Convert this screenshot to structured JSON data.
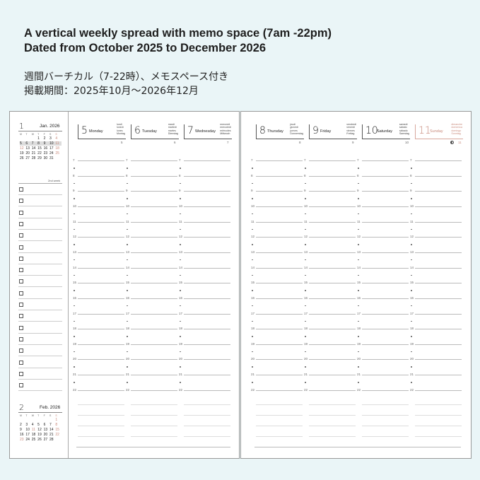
{
  "headline": [
    "A vertical weekly  spread with memo space (7am -22pm)",
    "Dated from October 2025 to December 2026"
  ],
  "japanese": [
    "週間バーチカル（7-22時）、メモスペース付き",
    "掲載期間：2025年10月～2026年12月"
  ],
  "colors": {
    "background": "#eaf5f7",
    "sunday": "#c98a7c",
    "holiday": "#c98a7c"
  },
  "sidebar": {
    "cal1": {
      "month_num": "1",
      "month_label": "Jan. 2026",
      "weekdays": [
        "M",
        "T",
        "W",
        "T",
        "F",
        "S",
        "S"
      ],
      "rows": [
        [
          "",
          "",
          "",
          "1",
          "2",
          "3",
          "4"
        ],
        [
          "5",
          "6",
          "7",
          "8",
          "9",
          "10",
          "11"
        ],
        [
          "12",
          "13",
          "14",
          "15",
          "16",
          "17",
          "18"
        ],
        [
          "19",
          "20",
          "21",
          "22",
          "23",
          "24",
          "25"
        ],
        [
          "26",
          "27",
          "28",
          "29",
          "30",
          "31",
          ""
        ]
      ],
      "highlight_row": 1
    },
    "week_label": "2nd week",
    "checkbox_count": 18,
    "cal2": {
      "month_num": "2",
      "month_label": "Feb. 2026",
      "weekdays": [
        "M",
        "T",
        "W",
        "T",
        "F",
        "S",
        "S"
      ],
      "rows": [
        [
          "",
          "",
          "",
          "",
          "",
          "",
          "1"
        ],
        [
          "2",
          "3",
          "4",
          "5",
          "6",
          "7",
          "8"
        ],
        [
          "9",
          "10",
          "11",
          "12",
          "13",
          "14",
          "15"
        ],
        [
          "16",
          "17",
          "18",
          "19",
          "20",
          "21",
          "22"
        ],
        [
          "23",
          "24",
          "25",
          "26",
          "27",
          "28",
          ""
        ]
      ]
    }
  },
  "days": [
    {
      "num": "5",
      "name": "Monday",
      "langs": [
        "lundi",
        "lunedì",
        "lunes",
        "Montag"
      ],
      "small": "5"
    },
    {
      "num": "6",
      "name": "Tuesday",
      "langs": [
        "mardi",
        "martedì",
        "martes",
        "Dienstag"
      ],
      "small": "6"
    },
    {
      "num": "7",
      "name": "Wednesday",
      "langs": [
        "mercredi",
        "mercoledì",
        "miércoles",
        "Mittwoch"
      ],
      "small": "7"
    },
    {
      "num": "8",
      "name": "Thursday",
      "langs": [
        "jeudi",
        "giovedì",
        "jueves",
        "Donnerstag"
      ],
      "small": "8"
    },
    {
      "num": "9",
      "name": "Friday",
      "langs": [
        "vendredi",
        "venerdì",
        "viernes",
        "Freitag"
      ],
      "small": "9"
    },
    {
      "num": "10",
      "name": "Saturday",
      "langs": [
        "samedi",
        "sabato",
        "sábado",
        "Samstag"
      ],
      "small": "10"
    },
    {
      "num": "11",
      "name": "Sunday",
      "langs": [
        "dimanche",
        "domenica",
        "domingo",
        "Sonntag"
      ],
      "small": "11",
      "sunday": true,
      "moon_icon": "half-moon-icon"
    }
  ],
  "hours": [
    "7",
    "8",
    "9",
    "10",
    "11",
    "12",
    "13",
    "14",
    "15",
    "16",
    "17",
    "18",
    "19",
    "20",
    "21",
    "22"
  ]
}
